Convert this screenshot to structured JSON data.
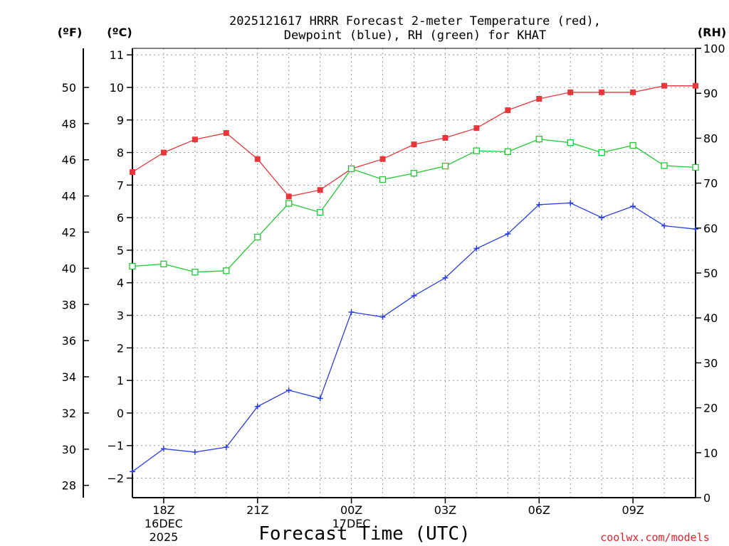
{
  "chart_data": {
    "type": "line",
    "title_line1": "2025121617 HRRR Forecast 2-meter Temperature (red),",
    "title_line2": "Dewpoint (blue), RH (green) for KHAT",
    "xlabel": "Forecast Time (UTC)",
    "credit": "coolwx.com/models",
    "units": {
      "fahrenheit": "(ºF)",
      "celsius": "(ºC)",
      "rh": "(RH)"
    },
    "grid": true,
    "x_hours": [
      17,
      18,
      19,
      20,
      21,
      22,
      23,
      24,
      25,
      26,
      27,
      28,
      29,
      30,
      31,
      32,
      33,
      34,
      35
    ],
    "xlim": [
      17,
      35
    ],
    "x_ticks": [
      {
        "hour": 18,
        "lines": [
          "18Z",
          "16DEC",
          "2025"
        ]
      },
      {
        "hour": 21,
        "lines": [
          "21Z"
        ]
      },
      {
        "hour": 24,
        "lines": [
          "00Z",
          "17DEC"
        ]
      },
      {
        "hour": 27,
        "lines": [
          "03Z"
        ]
      },
      {
        "hour": 30,
        "lines": [
          "06Z"
        ]
      },
      {
        "hour": 33,
        "lines": [
          "09Z"
        ]
      }
    ],
    "celsius_axis": {
      "ylim": [
        -2.6,
        11.2
      ],
      "ticks": [
        -2,
        -1,
        0,
        1,
        2,
        3,
        4,
        5,
        6,
        7,
        8,
        9,
        10,
        11
      ],
      "labels": [
        "−2",
        "−1",
        "0",
        "1",
        "2",
        "3",
        "4",
        "5",
        "6",
        "7",
        "8",
        "9",
        "10",
        "11"
      ]
    },
    "fahrenheit_axis": {
      "ticks": [
        28,
        30,
        32,
        34,
        36,
        38,
        40,
        42,
        44,
        46,
        48,
        50
      ]
    },
    "rh_axis": {
      "ylim": [
        0,
        100
      ],
      "ticks": [
        0,
        10,
        20,
        30,
        40,
        50,
        60,
        70,
        80,
        90,
        100
      ]
    },
    "series": [
      {
        "name": "2-meter Temperature",
        "axis": "celsius",
        "color": "#e8363c",
        "marker": "filled-square",
        "values": [
          7.4,
          8.0,
          8.4,
          8.6,
          7.8,
          6.65,
          6.85,
          7.5,
          7.8,
          8.25,
          8.45,
          8.75,
          9.3,
          9.65,
          9.85,
          9.85,
          9.85,
          10.05,
          10.05
        ]
      },
      {
        "name": "Dewpoint",
        "axis": "celsius",
        "color": "#2a3de8",
        "marker": "plus",
        "values": [
          -1.8,
          -1.1,
          -1.2,
          -1.05,
          0.2,
          0.7,
          0.45,
          3.1,
          2.95,
          3.6,
          4.15,
          5.05,
          5.5,
          6.4,
          6.45,
          6.0,
          6.35,
          5.75,
          5.65
        ]
      },
      {
        "name": "RH",
        "axis": "rh",
        "color": "#22c832",
        "marker": "open-square",
        "values": [
          51.5,
          52.0,
          50.2,
          50.5,
          58.0,
          65.5,
          63.5,
          73.2,
          70.8,
          72.2,
          73.8,
          77.2,
          77.0,
          79.8,
          79.0,
          76.8,
          78.4,
          73.9,
          73.5
        ]
      }
    ]
  }
}
